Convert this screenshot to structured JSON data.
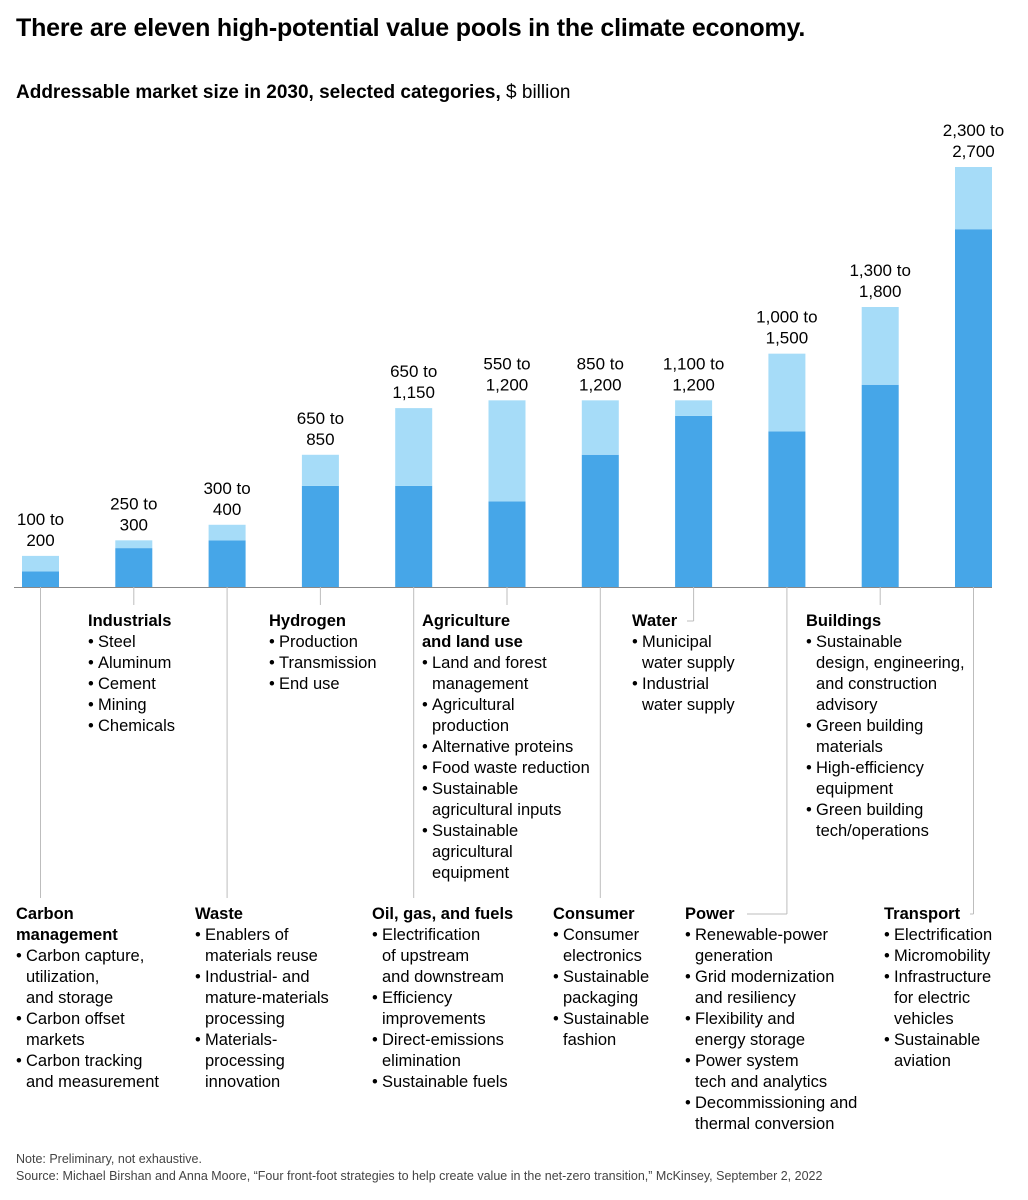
{
  "header": {
    "title": "There are eleven high-potential value pools in the climate economy.",
    "subtitle_bold": "Addressable market size in 2030, selected categories,",
    "subtitle_unit": "$ billion"
  },
  "colors": {
    "low": "#46a6e8",
    "high": "#a6dcf8",
    "axis": "#888888",
    "connector": "#bdbdbd"
  },
  "chart_data": {
    "type": "bar",
    "stacked_range": true,
    "unit": "$ billion",
    "categories": [
      "Carbon management",
      "Industrials",
      "Waste",
      "Hydrogen",
      "Oil, gas, and fuels",
      "Agriculture and land use",
      "Consumer",
      "Water",
      "Power",
      "Buildings",
      "Transport"
    ],
    "low": [
      100,
      250,
      300,
      650,
      650,
      550,
      850,
      1100,
      1000,
      1300,
      2300
    ],
    "high": [
      200,
      300,
      400,
      850,
      1150,
      1200,
      1200,
      1200,
      1500,
      1800,
      2700
    ],
    "labels": [
      [
        "100 to",
        "200"
      ],
      [
        "250 to",
        "300"
      ],
      [
        "300 to",
        "400"
      ],
      [
        "650 to",
        "850"
      ],
      [
        "650 to",
        "1,150"
      ],
      [
        "550 to",
        "1,200"
      ],
      [
        "850 to",
        "1,200"
      ],
      [
        "1,100 to",
        "1,200"
      ],
      [
        "1,000 to",
        "1,500"
      ],
      [
        "1,300 to",
        "1,800"
      ],
      [
        "2,300 to",
        "2,700"
      ]
    ],
    "ylim": [
      0,
      2700
    ]
  },
  "categories": [
    {
      "name": [
        "Carbon",
        "management"
      ],
      "items": [
        [
          "Carbon capture,",
          "utilization,",
          "and storage"
        ],
        [
          "Carbon offset",
          "markets"
        ],
        [
          "Carbon tracking",
          "and measurement"
        ]
      ]
    },
    {
      "name": [
        "Industrials"
      ],
      "items": [
        [
          "Steel"
        ],
        [
          "Aluminum"
        ],
        [
          "Cement"
        ],
        [
          "Mining"
        ],
        [
          "Chemicals"
        ]
      ]
    },
    {
      "name": [
        "Waste"
      ],
      "items": [
        [
          "Enablers of",
          "materials reuse"
        ],
        [
          "Industrial- and",
          "mature-materials",
          "processing"
        ],
        [
          "Materials-",
          "processing",
          "innovation"
        ]
      ]
    },
    {
      "name": [
        "Hydrogen"
      ],
      "items": [
        [
          "Production"
        ],
        [
          "Transmission"
        ],
        [
          "End use"
        ]
      ]
    },
    {
      "name": [
        "Oil, gas, and fuels"
      ],
      "items": [
        [
          "Electrification",
          "of upstream",
          "and downstream"
        ],
        [
          "Efficiency",
          "improvements"
        ],
        [
          "Direct-emissions",
          "elimination"
        ],
        [
          "Sustainable fuels"
        ]
      ]
    },
    {
      "name": [
        "Agriculture",
        "and land use"
      ],
      "items": [
        [
          "Land and forest",
          "management"
        ],
        [
          "Agricultural",
          "production"
        ],
        [
          "Alternative proteins"
        ],
        [
          "Food waste reduction"
        ],
        [
          "Sustainable",
          "agricultural inputs"
        ],
        [
          "Sustainable",
          "agricultural",
          "equipment"
        ]
      ]
    },
    {
      "name": [
        "Consumer"
      ],
      "items": [
        [
          "Consumer",
          "electronics"
        ],
        [
          "Sustainable",
          "packaging"
        ],
        [
          "Sustainable",
          "fashion"
        ]
      ]
    },
    {
      "name": [
        "Water"
      ],
      "items": [
        [
          "Municipal",
          "water supply"
        ],
        [
          "Industrial",
          "water supply"
        ]
      ]
    },
    {
      "name": [
        "Power"
      ],
      "items": [
        [
          "Renewable-power",
          "generation"
        ],
        [
          "Grid modernization",
          "and resiliency"
        ],
        [
          "Flexibility and",
          "energy storage"
        ],
        [
          "Power system",
          "tech and analytics"
        ],
        [
          "Decommissioning and",
          "thermal conversion"
        ]
      ]
    },
    {
      "name": [
        "Buildings"
      ],
      "items": [
        [
          "Sustainable",
          "design, engineering,",
          "and construction",
          "advisory"
        ],
        [
          "Green building",
          "materials"
        ],
        [
          "High-efficiency",
          "equipment"
        ],
        [
          "Green building",
          "tech/operations"
        ]
      ]
    },
    {
      "name": [
        "Transport"
      ],
      "items": [
        [
          "Electrification"
        ],
        [
          "Micromobility"
        ],
        [
          "Infrastructure",
          "for electric",
          "vehicles"
        ],
        [
          "Sustainable",
          "aviation"
        ]
      ]
    }
  ],
  "footer": {
    "note": "Note: Preliminary, not exhaustive.",
    "source": "Source: Michael Birshan and Anna Moore, “Four front-foot strategies to help create value in the net-zero transition,” McKinsey, September 2, 2022"
  }
}
